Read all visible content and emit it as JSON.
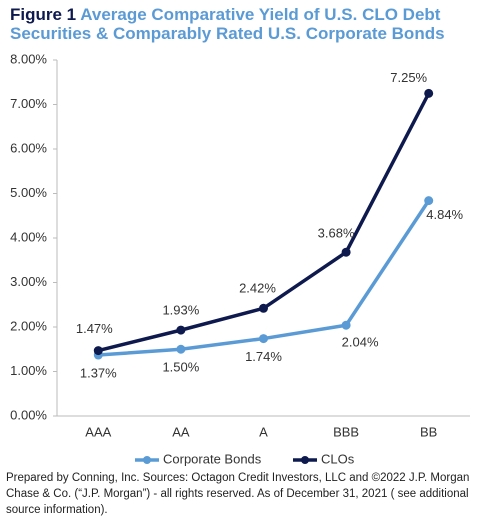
{
  "chart_data": {
    "type": "line",
    "figure_label": "Figure 1",
    "title": "Average Comparative Yield of U.S. CLO Debt Securities & Comparably Rated U.S. Corporate Bonds",
    "categories": [
      "AAA",
      "AA",
      "A",
      "BBB",
      "BB"
    ],
    "series": [
      {
        "name": "Corporate Bonds",
        "color": "#5b9bd5",
        "values": [
          1.37,
          1.5,
          1.74,
          2.04,
          4.84
        ],
        "value_labels": [
          "1.37%",
          "1.50%",
          "1.74%",
          "2.04%",
          "4.84%"
        ]
      },
      {
        "name": "CLOs",
        "color": "#0e1a4e",
        "values": [
          1.47,
          1.93,
          2.42,
          3.68,
          7.25
        ],
        "value_labels": [
          "1.47%",
          "1.93%",
          "2.42%",
          "3.68%",
          "7.25%"
        ]
      }
    ],
    "ylim": [
      0,
      8
    ],
    "yticks": [
      {
        "value": 0,
        "label": "0.00%"
      },
      {
        "value": 1,
        "label": "1.00%"
      },
      {
        "value": 2,
        "label": "2.00%"
      },
      {
        "value": 3,
        "label": "3.00%"
      },
      {
        "value": 4,
        "label": "4.00%"
      },
      {
        "value": 5,
        "label": "5.00%"
      },
      {
        "value": 6,
        "label": "6.00%"
      },
      {
        "value": 7,
        "label": "7.00%"
      },
      {
        "value": 8,
        "label": "8.00%"
      }
    ],
    "grid": false,
    "legend": "bottom",
    "footnote": "Prepared by Conning, Inc. Sources: Octagon Credit Investors, LLC and ©2022 J.P. Morgan Chase & Co. (“J.P. Morgan”) - all rights reserved. As of December 31, 2021 ( see additional source information)."
  }
}
